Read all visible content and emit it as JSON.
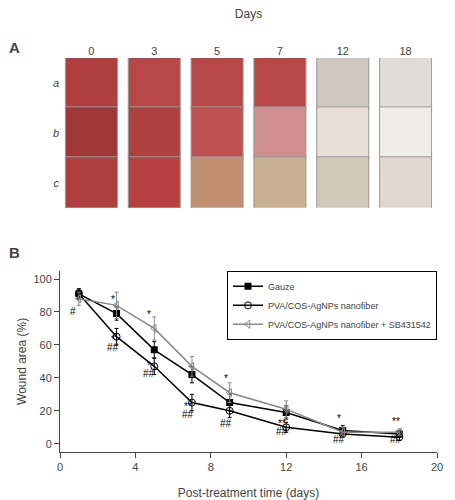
{
  "chart_data": [
    {
      "type": "photo_grid",
      "title": "A",
      "xlabel": "Days",
      "categories": [
        "0",
        "3",
        "5",
        "7",
        "12",
        "18"
      ],
      "series": [
        {
          "name": "a",
          "colors": [
            "#b04040",
            "#b84848",
            "#b84848",
            "#b84848",
            "#d0c8c0",
            "#e0ddd8"
          ]
        },
        {
          "name": "b",
          "colors": [
            "#a03838",
            "#b04040",
            "#c05050",
            "#d09090",
            "#e8e0d8",
            "#f0ece8"
          ]
        },
        {
          "name": "c",
          "colors": [
            "#b04040",
            "#b84040",
            "#c09070",
            "#c8b090",
            "#d0c8b8",
            "#e0d8d0"
          ]
        }
      ]
    },
    {
      "type": "line",
      "title": "B",
      "xlabel": "Post-treatment time (days)",
      "ylabel": "Wound area (%)",
      "x": [
        1,
        3,
        5,
        7,
        9,
        12,
        15,
        18
      ],
      "series": [
        {
          "name": "Gauze",
          "color": "#000000",
          "marker": "square",
          "values": [
            91,
            79,
            57,
            42,
            25,
            19,
            8,
            6
          ],
          "errors": [
            3,
            4,
            5,
            5,
            5,
            4,
            3,
            2
          ]
        },
        {
          "name": "PVA/COS-AgNPs nanofiber",
          "color": "#000000",
          "marker": "circle-open",
          "values": [
            91,
            65,
            47,
            25,
            20,
            10,
            6,
            4
          ],
          "errors": [
            3,
            5,
            5,
            5,
            4,
            3,
            2,
            2
          ]
        },
        {
          "name": "PVA/COS-AgNPs nanofiber + SB431542",
          "color": "#888888",
          "marker": "triangle-left-open",
          "values": [
            88,
            84,
            70,
            47,
            31,
            21,
            7,
            7
          ],
          "errors": [
            4,
            8,
            7,
            6,
            6,
            5,
            3,
            2
          ]
        }
      ],
      "xlim": [
        0,
        20
      ],
      "ylim": [
        -5,
        105
      ],
      "xticks": [
        0,
        4,
        8,
        12,
        16,
        20
      ],
      "yticks": [
        0,
        20,
        40,
        60,
        80,
        100
      ],
      "grid": false,
      "legend": "upper right",
      "annotations": [
        {
          "text": "*",
          "x": 2.8,
          "y": 83
        },
        {
          "text": "#",
          "x": 0.7,
          "y": 76
        },
        {
          "text": "*",
          "x": 4.7,
          "y": 74
        },
        {
          "text": "*",
          "x": 2.8,
          "y": 59
        },
        {
          "text": "##",
          "x": 2.8,
          "y": 54
        },
        {
          "text": "*",
          "x": 4.7,
          "y": 43
        },
        {
          "text": "##",
          "x": 4.7,
          "y": 38
        },
        {
          "text": "**",
          "x": 6.8,
          "y": 18
        },
        {
          "text": "##",
          "x": 6.8,
          "y": 13
        },
        {
          "text": "*",
          "x": 8.8,
          "y": 35
        },
        {
          "text": "##",
          "x": 8.8,
          "y": 8
        },
        {
          "text": "**",
          "x": 11.8,
          "y": 8
        },
        {
          "text": "##",
          "x": 11.8,
          "y": 3
        },
        {
          "text": "*",
          "x": 14.8,
          "y": 11
        },
        {
          "text": "##",
          "x": 14.8,
          "y": -2
        },
        {
          "text": "**",
          "x": 17.8,
          "y": 9
        },
        {
          "text": "##",
          "x": 17.8,
          "y": -2
        }
      ]
    }
  ]
}
